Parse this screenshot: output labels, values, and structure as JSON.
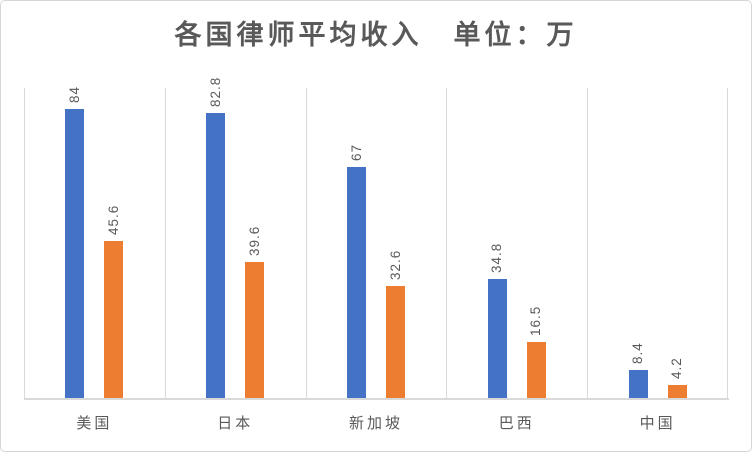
{
  "chart_data": {
    "type": "bar",
    "title": "各国律师平均收入　单位：万",
    "categories": [
      "美国",
      "日本",
      "新加坡",
      "巴西",
      "中国"
    ],
    "series": [
      {
        "name": "series-1",
        "color": "#4472C4",
        "values": [
          84,
          82.8,
          67,
          34.8,
          8.4
        ]
      },
      {
        "name": "series-2",
        "color": "#ED7D31",
        "values": [
          45.6,
          39.6,
          32.6,
          16.5,
          4.2
        ]
      }
    ],
    "ylim": [
      0,
      90
    ],
    "xlabel": "",
    "ylabel": "",
    "legend": "none",
    "y_axis_ticks_visible": false,
    "grid": "vertical-category-separators",
    "data_labels_rotation": "90-degrees-bottom-to-top"
  },
  "style": {
    "series1_color": "#4472C4",
    "series2_color": "#ED7D31",
    "gridline_color": "#d9d9d9",
    "axis_line_color": "#d9d9d9",
    "text_color": "#595959",
    "title_color": "#595959",
    "frame_border_color": "#d6d6d6",
    "background_color": "#ffffff"
  }
}
